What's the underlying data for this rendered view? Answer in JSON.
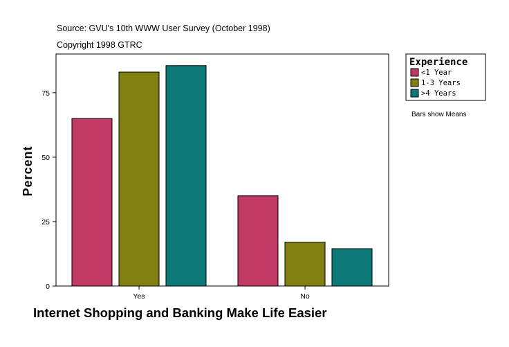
{
  "header": {
    "source": "Source: GVU's 10th WWW User Survey (October 1998)",
    "copyright": "Copyright 1998 GTRC"
  },
  "note": "Bars show Means",
  "chart_data": {
    "type": "bar",
    "title": "",
    "xlabel": "Internet Shopping and Banking Make Life Easier",
    "ylabel": "Percent",
    "categories": [
      "Yes",
      "No"
    ],
    "ylim": [
      0,
      90
    ],
    "yticks": [
      0,
      25,
      50,
      75
    ],
    "grid": false,
    "legend": {
      "title": "Experience",
      "placement": "right"
    },
    "series": [
      {
        "name": "<1 Year",
        "color": "#c03a64",
        "values": [
          65,
          35
        ]
      },
      {
        "name": "1-3 Years",
        "color": "#808010",
        "values": [
          83,
          17
        ]
      },
      {
        "name": ">4 Years",
        "color": "#0c7878",
        "values": [
          85.5,
          14.5
        ]
      }
    ]
  }
}
